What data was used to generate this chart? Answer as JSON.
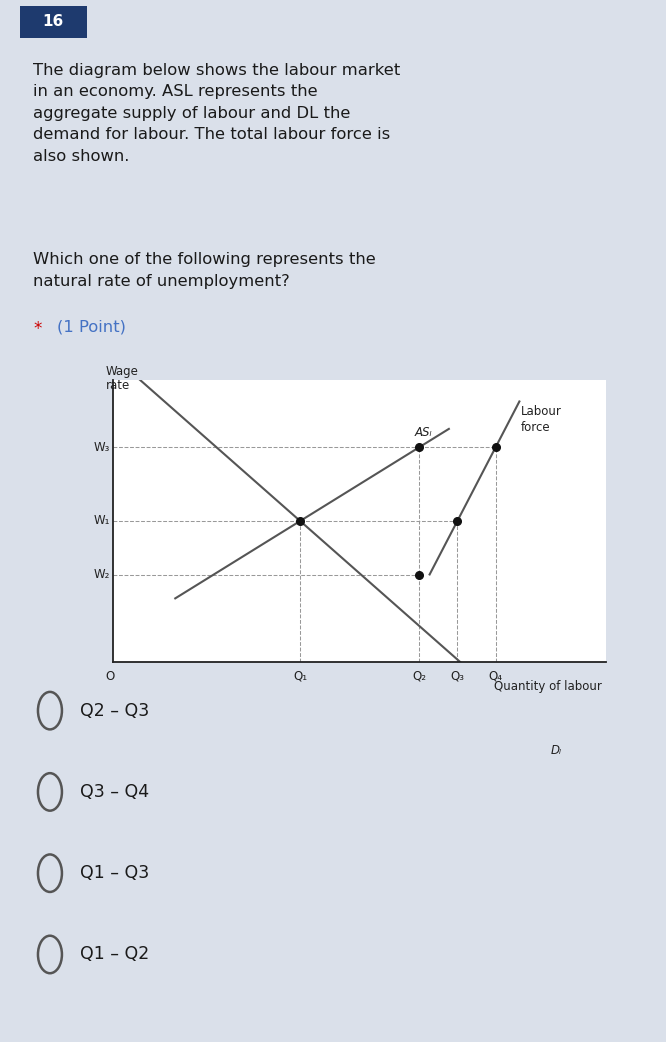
{
  "bg_color": "#dae0ea",
  "chart_bg": "#ffffff",
  "question_number": "16",
  "question_number_bg": "#1e3a6e",
  "question_number_color": "#ffffff",
  "paragraph_text": "The diagram below shows the labour market\nin an economy. ASL represents the\naggregate supply of labour and DL the\ndemand for labour. The total labour force is\nalso shown.",
  "question_text": "Which one of the following represents the\nnatural rate of unemployment?",
  "options": [
    "Q2 – Q3",
    "Q3 – Q4",
    "Q1 – Q3",
    "Q1 – Q2"
  ],
  "ylabel_line1": "Wage",
  "ylabel_line2": "rate",
  "xlabel": "Quantity of labour",
  "wage_labels": [
    "W₃",
    "W₁",
    "W₂"
  ],
  "wage_values": [
    3.2,
    2.1,
    1.3
  ],
  "q_labels": [
    "Q₁",
    "Q₂",
    "Q₃",
    "Q₄"
  ],
  "q_values": [
    2.2,
    3.6,
    4.05,
    4.5
  ],
  "ASL_label": "ASₗ",
  "DL_label": "Dₗ",
  "Labour_force_label": "Labour\nforce",
  "text_color": "#1a1a1a",
  "dashed_color": "#999999",
  "line_color": "#555555",
  "dot_color": "#111111",
  "point_star_color": "#cc0000",
  "point_text_color": "#4472c4"
}
